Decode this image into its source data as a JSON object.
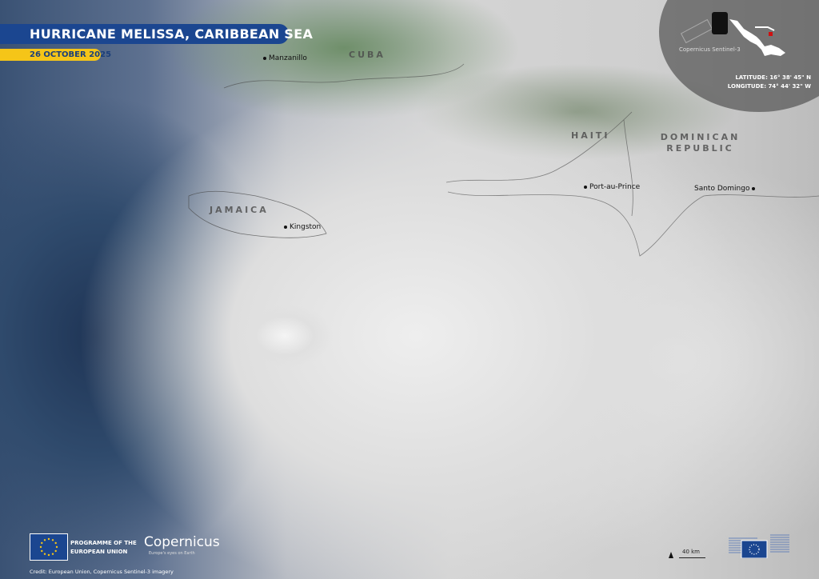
{
  "title": "HURRICANE MELISSA, CARIBBEAN SEA",
  "date": "26 OCTOBER 2025",
  "countries": [
    "CUBA",
    "JAMAICA",
    "HAITI",
    "DOMINICAN REPUBLIC"
  ],
  "cities": [
    "Manzanillo",
    "Kingston",
    "Port-au-Prince",
    "Santo Domingo"
  ],
  "inset": {
    "satellite": "Copernicus Sentinel-3",
    "latitude": "LATITUDE: 16° 38' 45\" N",
    "longitude": "LONGITUDE: 74° 44' 32\" W",
    "marker_color": "#d01010"
  },
  "logos": {
    "programme": "PROGRAMME OF THE",
    "programme2": "EUROPEAN UNION",
    "copernicus": "Copernicus",
    "copernicus_tagline": "Europe's eyes on Earth"
  },
  "scale": "40 km",
  "credit": "Credit: European Union, Copernicus Sentinel-3 imagery",
  "colors": {
    "title_bg": "#1b4690",
    "date_bg": "#f5c518"
  }
}
